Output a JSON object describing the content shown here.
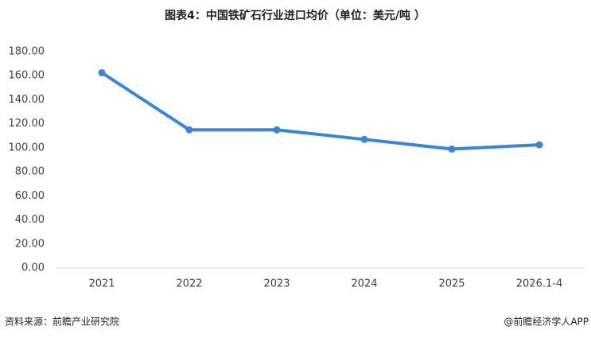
{
  "chart_data": {
    "type": "line",
    "title": "图表4：中国铁矿石行业进口均价（单位：美元/吨 ）",
    "categories": [
      "2021",
      "2022",
      "2023",
      "2024",
      "2025",
      "2026.1-4"
    ],
    "series": [
      {
        "name": "进口均价",
        "color": "#3a85d7",
        "values": [
          162.5,
          115,
          115,
          107,
          99,
          102.5
        ]
      }
    ],
    "ylim": [
      0,
      180
    ],
    "yticks": [
      {
        "value": 0,
        "label": "0.00"
      },
      {
        "value": 20,
        "label": "20.00"
      },
      {
        "value": 40,
        "label": "40.00"
      },
      {
        "value": 60,
        "label": "60.00"
      },
      {
        "value": 80,
        "label": "80.00"
      },
      {
        "value": 100,
        "label": "100.00"
      },
      {
        "value": 120,
        "label": "120.00"
      },
      {
        "value": 140,
        "label": "140.00"
      },
      {
        "value": 160,
        "label": "160.00"
      },
      {
        "value": 180,
        "label": "180.00"
      }
    ],
    "grid": false,
    "source": "资料来源：前瞻产业研究院",
    "credit": "@前瞻经济学人APP"
  }
}
